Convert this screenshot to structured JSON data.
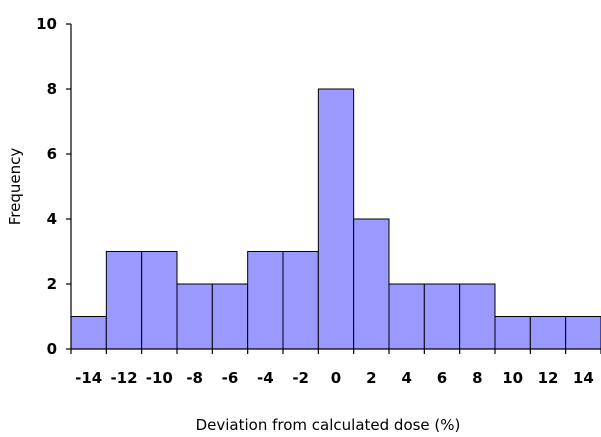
{
  "chart_data": {
    "type": "bar",
    "title": "",
    "xlabel": "Deviation from calculated dose (%)",
    "ylabel": "Frequency",
    "bin_edges": [
      -15,
      -13,
      -11,
      -9,
      -7,
      -5,
      -3,
      -1,
      1,
      3,
      5,
      7,
      9,
      11,
      13,
      15
    ],
    "values": [
      1,
      3,
      3,
      2,
      2,
      3,
      3,
      8,
      4,
      2,
      2,
      2,
      1,
      1,
      1
    ],
    "xticks": [
      -14,
      -12,
      -10,
      -8,
      -6,
      -4,
      -2,
      0,
      2,
      4,
      6,
      8,
      10,
      12,
      14
    ],
    "yticks": [
      0,
      2,
      4,
      6,
      8,
      10
    ],
    "ylim": [
      0,
      10
    ],
    "xlim": [
      -15,
      15
    ],
    "grid": false,
    "legend": "none",
    "bar_color": "#9999ff",
    "edge_color": "#000000"
  }
}
